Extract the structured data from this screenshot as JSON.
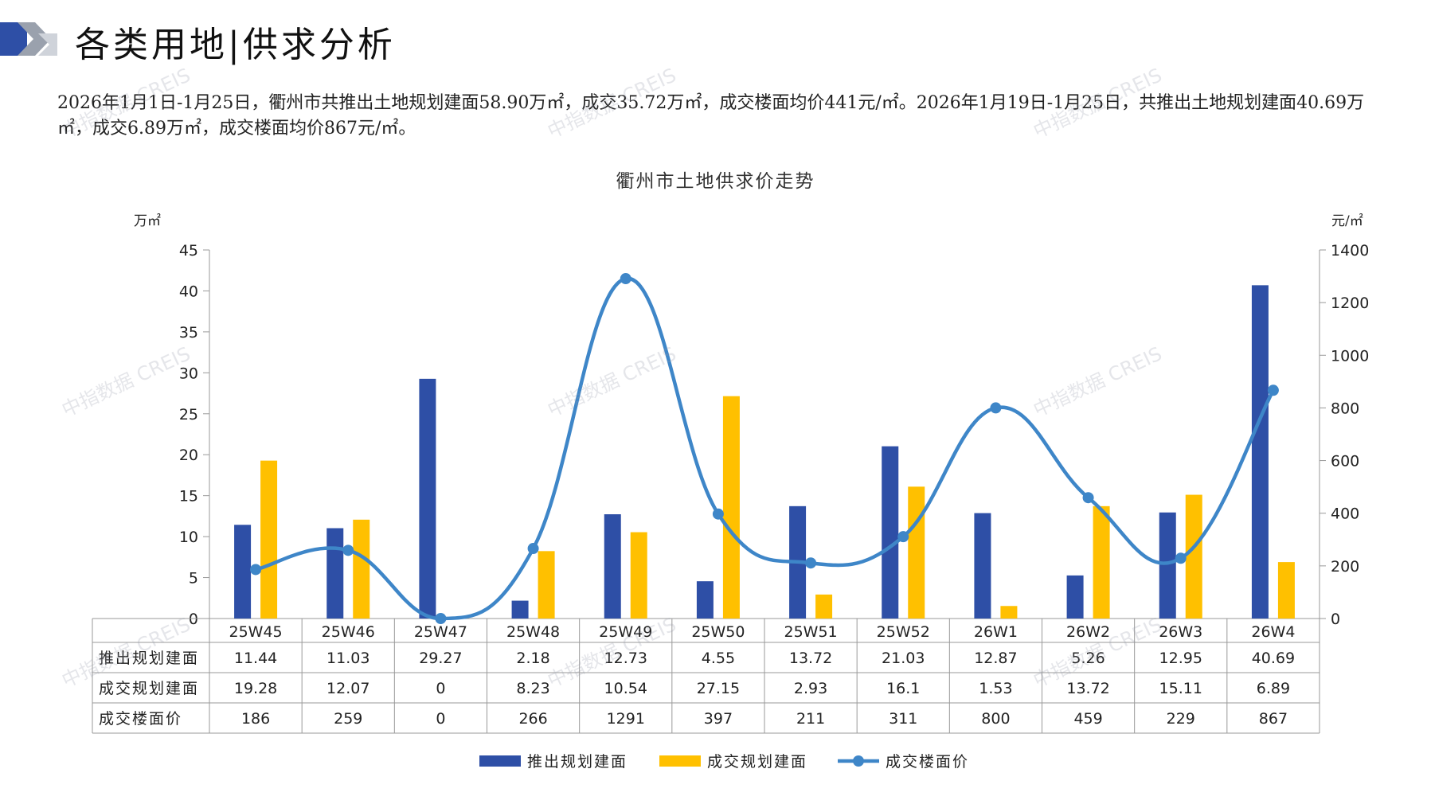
{
  "header": {
    "title": "各类用地|供求分析"
  },
  "summary": "2026年1月1日-1月25日，衢州市共推出土地规划建面58.90万㎡，成交35.72万㎡，成交楼面均价441元/㎡。2026年1月19日-1月25日，共推出土地规划建面40.69万㎡，成交6.89万㎡，成交楼面均价867元/㎡。",
  "watermark": "中指数据 CREIS",
  "colors": {
    "supply": "#2E4FA6",
    "deal": "#FFC000",
    "price": "#3E86C8"
  },
  "chart_data": {
    "type": "bar",
    "title": "衢州市土地供求价走势",
    "left_unit": "万㎡",
    "right_unit": "元/㎡",
    "categories": [
      "25W45",
      "25W46",
      "25W47",
      "25W48",
      "25W49",
      "25W50",
      "25W51",
      "25W52",
      "26W1",
      "26W2",
      "26W3",
      "26W4"
    ],
    "series": [
      {
        "name": "推出规划建面",
        "type": "bar",
        "axis": "left",
        "values": [
          "11.44",
          "11.03",
          "29.27",
          "2.18",
          "12.73",
          "4.55",
          "13.72",
          "21.03",
          "12.87",
          "5.26",
          "12.95",
          "40.69"
        ]
      },
      {
        "name": "成交规划建面",
        "type": "bar",
        "axis": "left",
        "values": [
          "19.28",
          "12.07",
          "0",
          "8.23",
          "10.54",
          "27.15",
          "2.93",
          "16.1",
          "1.53",
          "13.72",
          "15.11",
          "6.89"
        ]
      },
      {
        "name": "成交楼面价",
        "type": "line",
        "axis": "right",
        "values": [
          "186",
          "259",
          "0",
          "266",
          "1291",
          "397",
          "211",
          "311",
          "800",
          "459",
          "229",
          "867"
        ]
      }
    ],
    "ylim_left": [
      0,
      45
    ],
    "yticks_left": [
      "0",
      "5",
      "10",
      "15",
      "20",
      "25",
      "30",
      "35",
      "40",
      "45"
    ],
    "ylim_right": [
      0,
      1400
    ],
    "yticks_right": [
      "0",
      "200",
      "400",
      "600",
      "800",
      "1000",
      "1200",
      "1400"
    ],
    "legend": "bottom",
    "data_table": true
  }
}
